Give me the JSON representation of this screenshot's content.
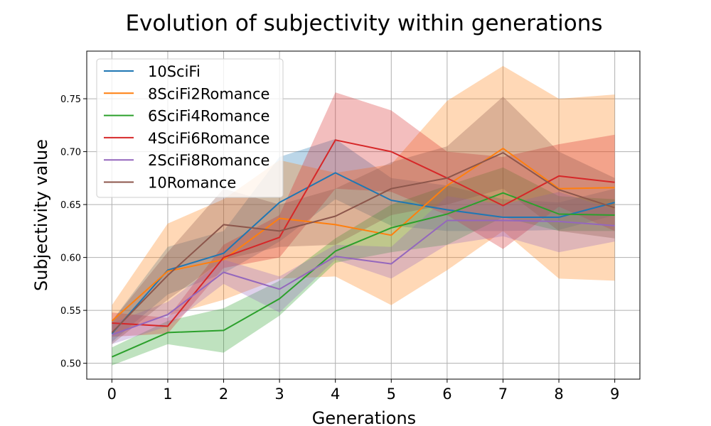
{
  "chart_data": {
    "type": "line",
    "title": "Evolution of subjectivity within generations",
    "xlabel": "Generations",
    "ylabel": "Subjectivity value",
    "x": [
      0,
      1,
      2,
      3,
      4,
      5,
      6,
      7,
      8,
      9
    ],
    "xticks": [
      "0",
      "1",
      "2",
      "3",
      "4",
      "5",
      "6",
      "7",
      "8",
      "9"
    ],
    "yticks": [
      "0.50",
      "0.55",
      "0.60",
      "0.65",
      "0.70",
      "0.75"
    ],
    "ytick_values": [
      0.5,
      0.55,
      0.6,
      0.65,
      0.7,
      0.75
    ],
    "xlim": [
      -0.45,
      9.45
    ],
    "ylim": [
      0.485,
      0.795
    ],
    "grid": true,
    "legend_position": "top-left",
    "band_opacity": 0.3,
    "series": [
      {
        "name": "10SciFi",
        "color": "#1f77b4",
        "values": [
          0.528,
          0.588,
          0.604,
          0.652,
          0.68,
          0.654,
          0.645,
          0.638,
          0.638,
          0.652
        ],
        "lower": [
          0.52,
          0.565,
          0.585,
          0.615,
          0.655,
          0.63,
          0.625,
          0.625,
          0.626,
          0.64
        ],
        "upper": [
          0.54,
          0.61,
          0.625,
          0.695,
          0.712,
          0.675,
          0.668,
          0.655,
          0.652,
          0.665
        ]
      },
      {
        "name": "8SciFi2Romance",
        "color": "#ff7f0e",
        "values": [
          0.54,
          0.587,
          0.598,
          0.637,
          0.631,
          0.621,
          0.668,
          0.703,
          0.665,
          0.666
        ],
        "lower": [
          0.528,
          0.545,
          0.56,
          0.58,
          0.582,
          0.555,
          0.588,
          0.625,
          0.58,
          0.578
        ],
        "upper": [
          0.555,
          0.632,
          0.655,
          0.692,
          0.68,
          0.688,
          0.748,
          0.781,
          0.75,
          0.754
        ]
      },
      {
        "name": "6SciFi4Romance",
        "color": "#2ca02c",
        "values": [
          0.506,
          0.529,
          0.531,
          0.561,
          0.606,
          0.628,
          0.641,
          0.661,
          0.641,
          0.64
        ],
        "lower": [
          0.498,
          0.518,
          0.51,
          0.545,
          0.595,
          0.605,
          0.612,
          0.638,
          0.625,
          0.625
        ],
        "upper": [
          0.515,
          0.54,
          0.552,
          0.578,
          0.618,
          0.65,
          0.668,
          0.685,
          0.658,
          0.655
        ]
      },
      {
        "name": "4SciFi6Romance",
        "color": "#d62728",
        "values": [
          0.538,
          0.535,
          0.6,
          0.619,
          0.711,
          0.7,
          0.675,
          0.649,
          0.677,
          0.671
        ],
        "lower": [
          0.525,
          0.528,
          0.59,
          0.6,
          0.665,
          0.662,
          0.64,
          0.608,
          0.648,
          0.625
        ],
        "upper": [
          0.548,
          0.543,
          0.612,
          0.64,
          0.756,
          0.739,
          0.7,
          0.695,
          0.707,
          0.716
        ]
      },
      {
        "name": "2SciFi8Romance",
        "color": "#9467bd",
        "values": [
          0.527,
          0.546,
          0.586,
          0.57,
          0.601,
          0.594,
          0.635,
          0.635,
          0.634,
          0.63
        ],
        "lower": [
          0.518,
          0.535,
          0.575,
          0.548,
          0.598,
          0.58,
          0.612,
          0.62,
          0.605,
          0.615
        ],
        "upper": [
          0.538,
          0.558,
          0.598,
          0.582,
          0.612,
          0.61,
          0.658,
          0.65,
          0.662,
          0.645
        ]
      },
      {
        "name": "10Romance",
        "color": "#8c564b",
        "values": [
          0.529,
          0.583,
          0.631,
          0.625,
          0.639,
          0.665,
          0.675,
          0.699,
          0.664,
          0.647
        ],
        "lower": [
          0.518,
          0.56,
          0.598,
          0.61,
          0.612,
          0.64,
          0.65,
          0.665,
          0.625,
          0.618
        ],
        "upper": [
          0.54,
          0.605,
          0.665,
          0.65,
          0.665,
          0.69,
          0.705,
          0.752,
          0.7,
          0.675
        ]
      }
    ]
  }
}
